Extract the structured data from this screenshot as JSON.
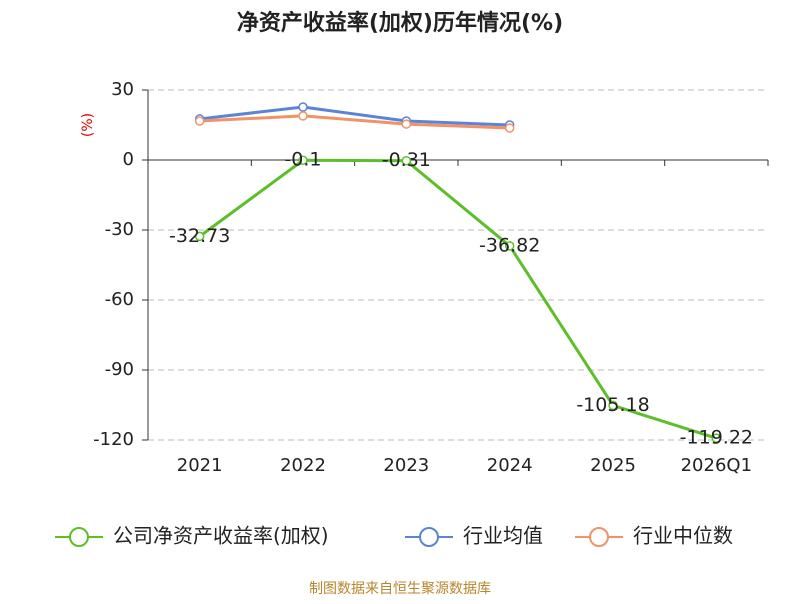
{
  "chart_data": {
    "type": "line",
    "title": "净资产收益率(加权)历年情况(%)",
    "y_label": "(%)",
    "source": "制图数据来自恒生聚源数据库",
    "categories": [
      "2021",
      "2022",
      "2023",
      "2024",
      "2025",
      "2026Q1"
    ],
    "series": [
      {
        "name": "公司净资产收益率(加权)",
        "color": "#5cbf2a",
        "values": [
          -32.73,
          -0.1,
          -0.31,
          -36.82,
          -105.18,
          -119.22
        ],
        "data_labels": true
      },
      {
        "name": "行业均值",
        "color": "#5b83d6",
        "values": [
          17.6,
          22.7,
          16.7,
          15.0,
          null,
          null
        ]
      },
      {
        "name": "行业中位数",
        "color": "#f29268",
        "values": [
          16.7,
          18.9,
          15.4,
          13.7,
          null,
          null
        ]
      }
    ],
    "ylim": [
      -120,
      30
    ],
    "yticks": [
      -120,
      -90,
      -60,
      -30,
      0,
      30
    ],
    "grid": true,
    "legend": "bottom"
  }
}
